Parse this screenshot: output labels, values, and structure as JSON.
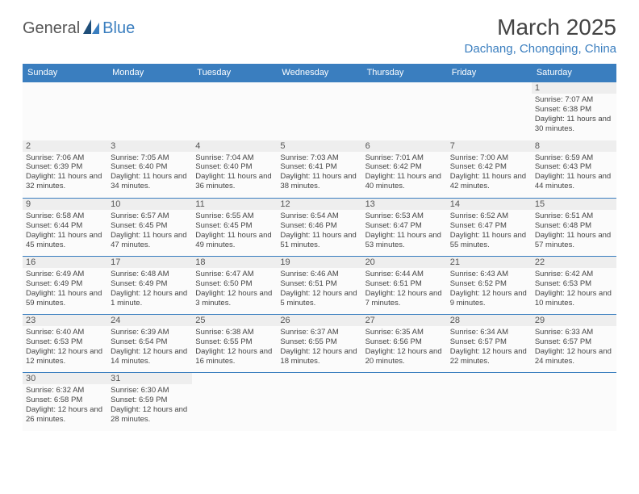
{
  "logo": {
    "general": "General",
    "blue": "Blue"
  },
  "header": {
    "month_title": "March 2025",
    "location": "Dachang, Chongqing, China"
  },
  "colors": {
    "brand_blue": "#3a7ebf",
    "header_text": "#444444",
    "cell_text": "#444444",
    "daynum_bg": "#eeeeee",
    "cell_bg": "#fbfbfb",
    "background": "#ffffff"
  },
  "weekdays": [
    "Sunday",
    "Monday",
    "Tuesday",
    "Wednesday",
    "Thursday",
    "Friday",
    "Saturday"
  ],
  "layout": {
    "first_weekday_index": 6,
    "days_in_month": 31,
    "rows": 6,
    "cols": 7
  },
  "days": [
    {
      "n": 1,
      "sunrise": "7:07 AM",
      "sunset": "6:38 PM",
      "daylight": "11 hours and 30 minutes."
    },
    {
      "n": 2,
      "sunrise": "7:06 AM",
      "sunset": "6:39 PM",
      "daylight": "11 hours and 32 minutes."
    },
    {
      "n": 3,
      "sunrise": "7:05 AM",
      "sunset": "6:40 PM",
      "daylight": "11 hours and 34 minutes."
    },
    {
      "n": 4,
      "sunrise": "7:04 AM",
      "sunset": "6:40 PM",
      "daylight": "11 hours and 36 minutes."
    },
    {
      "n": 5,
      "sunrise": "7:03 AM",
      "sunset": "6:41 PM",
      "daylight": "11 hours and 38 minutes."
    },
    {
      "n": 6,
      "sunrise": "7:01 AM",
      "sunset": "6:42 PM",
      "daylight": "11 hours and 40 minutes."
    },
    {
      "n": 7,
      "sunrise": "7:00 AM",
      "sunset": "6:42 PM",
      "daylight": "11 hours and 42 minutes."
    },
    {
      "n": 8,
      "sunrise": "6:59 AM",
      "sunset": "6:43 PM",
      "daylight": "11 hours and 44 minutes."
    },
    {
      "n": 9,
      "sunrise": "6:58 AM",
      "sunset": "6:44 PM",
      "daylight": "11 hours and 45 minutes."
    },
    {
      "n": 10,
      "sunrise": "6:57 AM",
      "sunset": "6:45 PM",
      "daylight": "11 hours and 47 minutes."
    },
    {
      "n": 11,
      "sunrise": "6:55 AM",
      "sunset": "6:45 PM",
      "daylight": "11 hours and 49 minutes."
    },
    {
      "n": 12,
      "sunrise": "6:54 AM",
      "sunset": "6:46 PM",
      "daylight": "11 hours and 51 minutes."
    },
    {
      "n": 13,
      "sunrise": "6:53 AM",
      "sunset": "6:47 PM",
      "daylight": "11 hours and 53 minutes."
    },
    {
      "n": 14,
      "sunrise": "6:52 AM",
      "sunset": "6:47 PM",
      "daylight": "11 hours and 55 minutes."
    },
    {
      "n": 15,
      "sunrise": "6:51 AM",
      "sunset": "6:48 PM",
      "daylight": "11 hours and 57 minutes."
    },
    {
      "n": 16,
      "sunrise": "6:49 AM",
      "sunset": "6:49 PM",
      "daylight": "11 hours and 59 minutes."
    },
    {
      "n": 17,
      "sunrise": "6:48 AM",
      "sunset": "6:49 PM",
      "daylight": "12 hours and 1 minute."
    },
    {
      "n": 18,
      "sunrise": "6:47 AM",
      "sunset": "6:50 PM",
      "daylight": "12 hours and 3 minutes."
    },
    {
      "n": 19,
      "sunrise": "6:46 AM",
      "sunset": "6:51 PM",
      "daylight": "12 hours and 5 minutes."
    },
    {
      "n": 20,
      "sunrise": "6:44 AM",
      "sunset": "6:51 PM",
      "daylight": "12 hours and 7 minutes."
    },
    {
      "n": 21,
      "sunrise": "6:43 AM",
      "sunset": "6:52 PM",
      "daylight": "12 hours and 9 minutes."
    },
    {
      "n": 22,
      "sunrise": "6:42 AM",
      "sunset": "6:53 PM",
      "daylight": "12 hours and 10 minutes."
    },
    {
      "n": 23,
      "sunrise": "6:40 AM",
      "sunset": "6:53 PM",
      "daylight": "12 hours and 12 minutes."
    },
    {
      "n": 24,
      "sunrise": "6:39 AM",
      "sunset": "6:54 PM",
      "daylight": "12 hours and 14 minutes."
    },
    {
      "n": 25,
      "sunrise": "6:38 AM",
      "sunset": "6:55 PM",
      "daylight": "12 hours and 16 minutes."
    },
    {
      "n": 26,
      "sunrise": "6:37 AM",
      "sunset": "6:55 PM",
      "daylight": "12 hours and 18 minutes."
    },
    {
      "n": 27,
      "sunrise": "6:35 AM",
      "sunset": "6:56 PM",
      "daylight": "12 hours and 20 minutes."
    },
    {
      "n": 28,
      "sunrise": "6:34 AM",
      "sunset": "6:57 PM",
      "daylight": "12 hours and 22 minutes."
    },
    {
      "n": 29,
      "sunrise": "6:33 AM",
      "sunset": "6:57 PM",
      "daylight": "12 hours and 24 minutes."
    },
    {
      "n": 30,
      "sunrise": "6:32 AM",
      "sunset": "6:58 PM",
      "daylight": "12 hours and 26 minutes."
    },
    {
      "n": 31,
      "sunrise": "6:30 AM",
      "sunset": "6:59 PM",
      "daylight": "12 hours and 28 minutes."
    }
  ],
  "labels": {
    "sunrise_prefix": "Sunrise: ",
    "sunset_prefix": "Sunset: ",
    "daylight_prefix": "Daylight: "
  }
}
